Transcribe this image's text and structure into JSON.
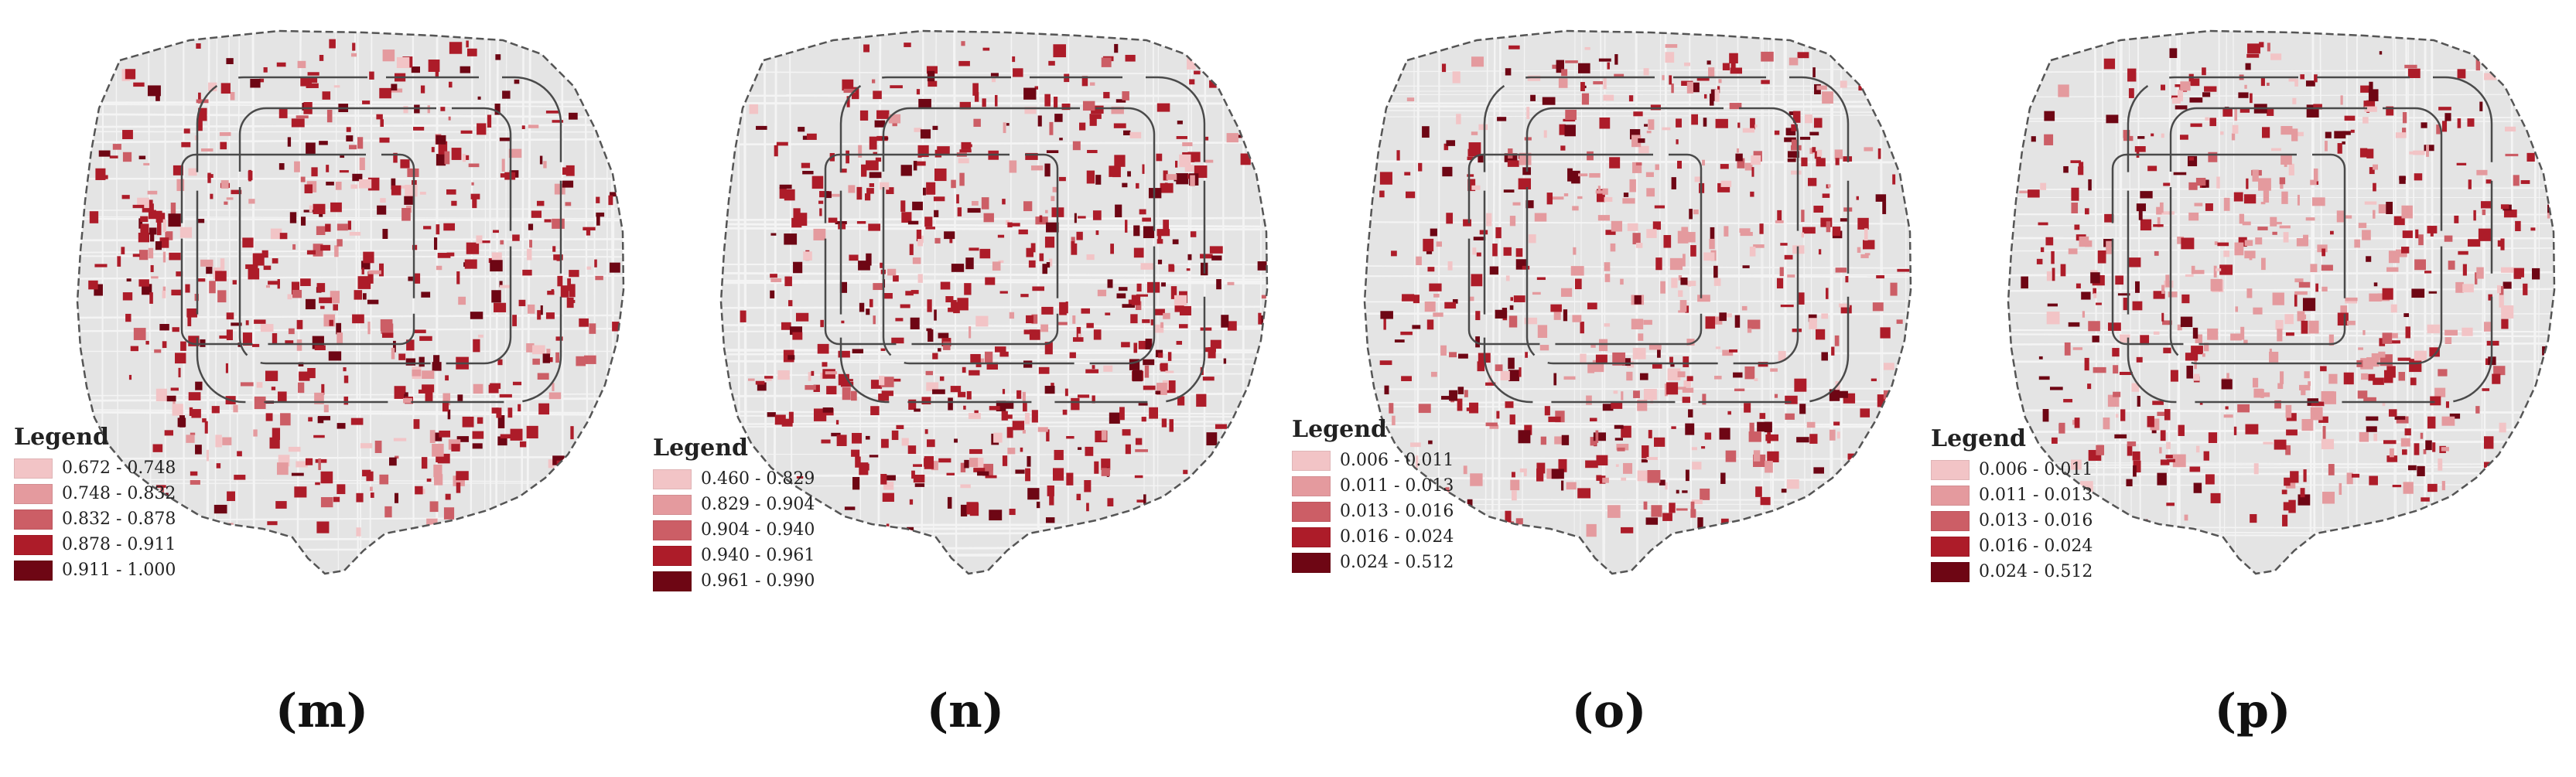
{
  "colors": {
    "background_gray": "#e4e4e4",
    "boundary": "#555555",
    "ramp": [
      "#f2c4c6",
      "#e49a9e",
      "#cc5e66",
      "#ad1c29",
      "#6e0614"
    ]
  },
  "panels": [
    {
      "id": "m",
      "caption": "(m)",
      "legend": {
        "title": "Legend",
        "classes": [
          {
            "range": "0.672 - 0.748"
          },
          {
            "range": "0.748 - 0.832"
          },
          {
            "range": "0.832 - 0.878"
          },
          {
            "range": "0.878 - 0.911"
          },
          {
            "range": "0.911 - 1.000"
          }
        ]
      }
    },
    {
      "id": "n",
      "caption": "(n)",
      "legend": {
        "title": "Legend",
        "classes": [
          {
            "range": "0.460 - 0.829"
          },
          {
            "range": "0.829 - 0.904"
          },
          {
            "range": "0.904 - 0.940"
          },
          {
            "range": "0.940 - 0.961"
          },
          {
            "range": "0.961 - 0.990"
          }
        ]
      }
    },
    {
      "id": "o",
      "caption": "(o)",
      "legend": {
        "title": "Legend",
        "classes": [
          {
            "range": "0.006 - 0.011"
          },
          {
            "range": "0.011 - 0.013"
          },
          {
            "range": "0.013 - 0.016"
          },
          {
            "range": "0.016 - 0.024"
          },
          {
            "range": "0.024 - 0.512"
          }
        ]
      }
    },
    {
      "id": "p",
      "caption": "(p)",
      "legend": {
        "title": "Legend",
        "classes": [
          {
            "range": "0.006 - 0.011"
          },
          {
            "range": "0.011 - 0.013"
          },
          {
            "range": "0.013 - 0.016"
          },
          {
            "range": "0.016 - 0.024"
          },
          {
            "range": "0.024 - 0.512"
          }
        ]
      }
    }
  ]
}
